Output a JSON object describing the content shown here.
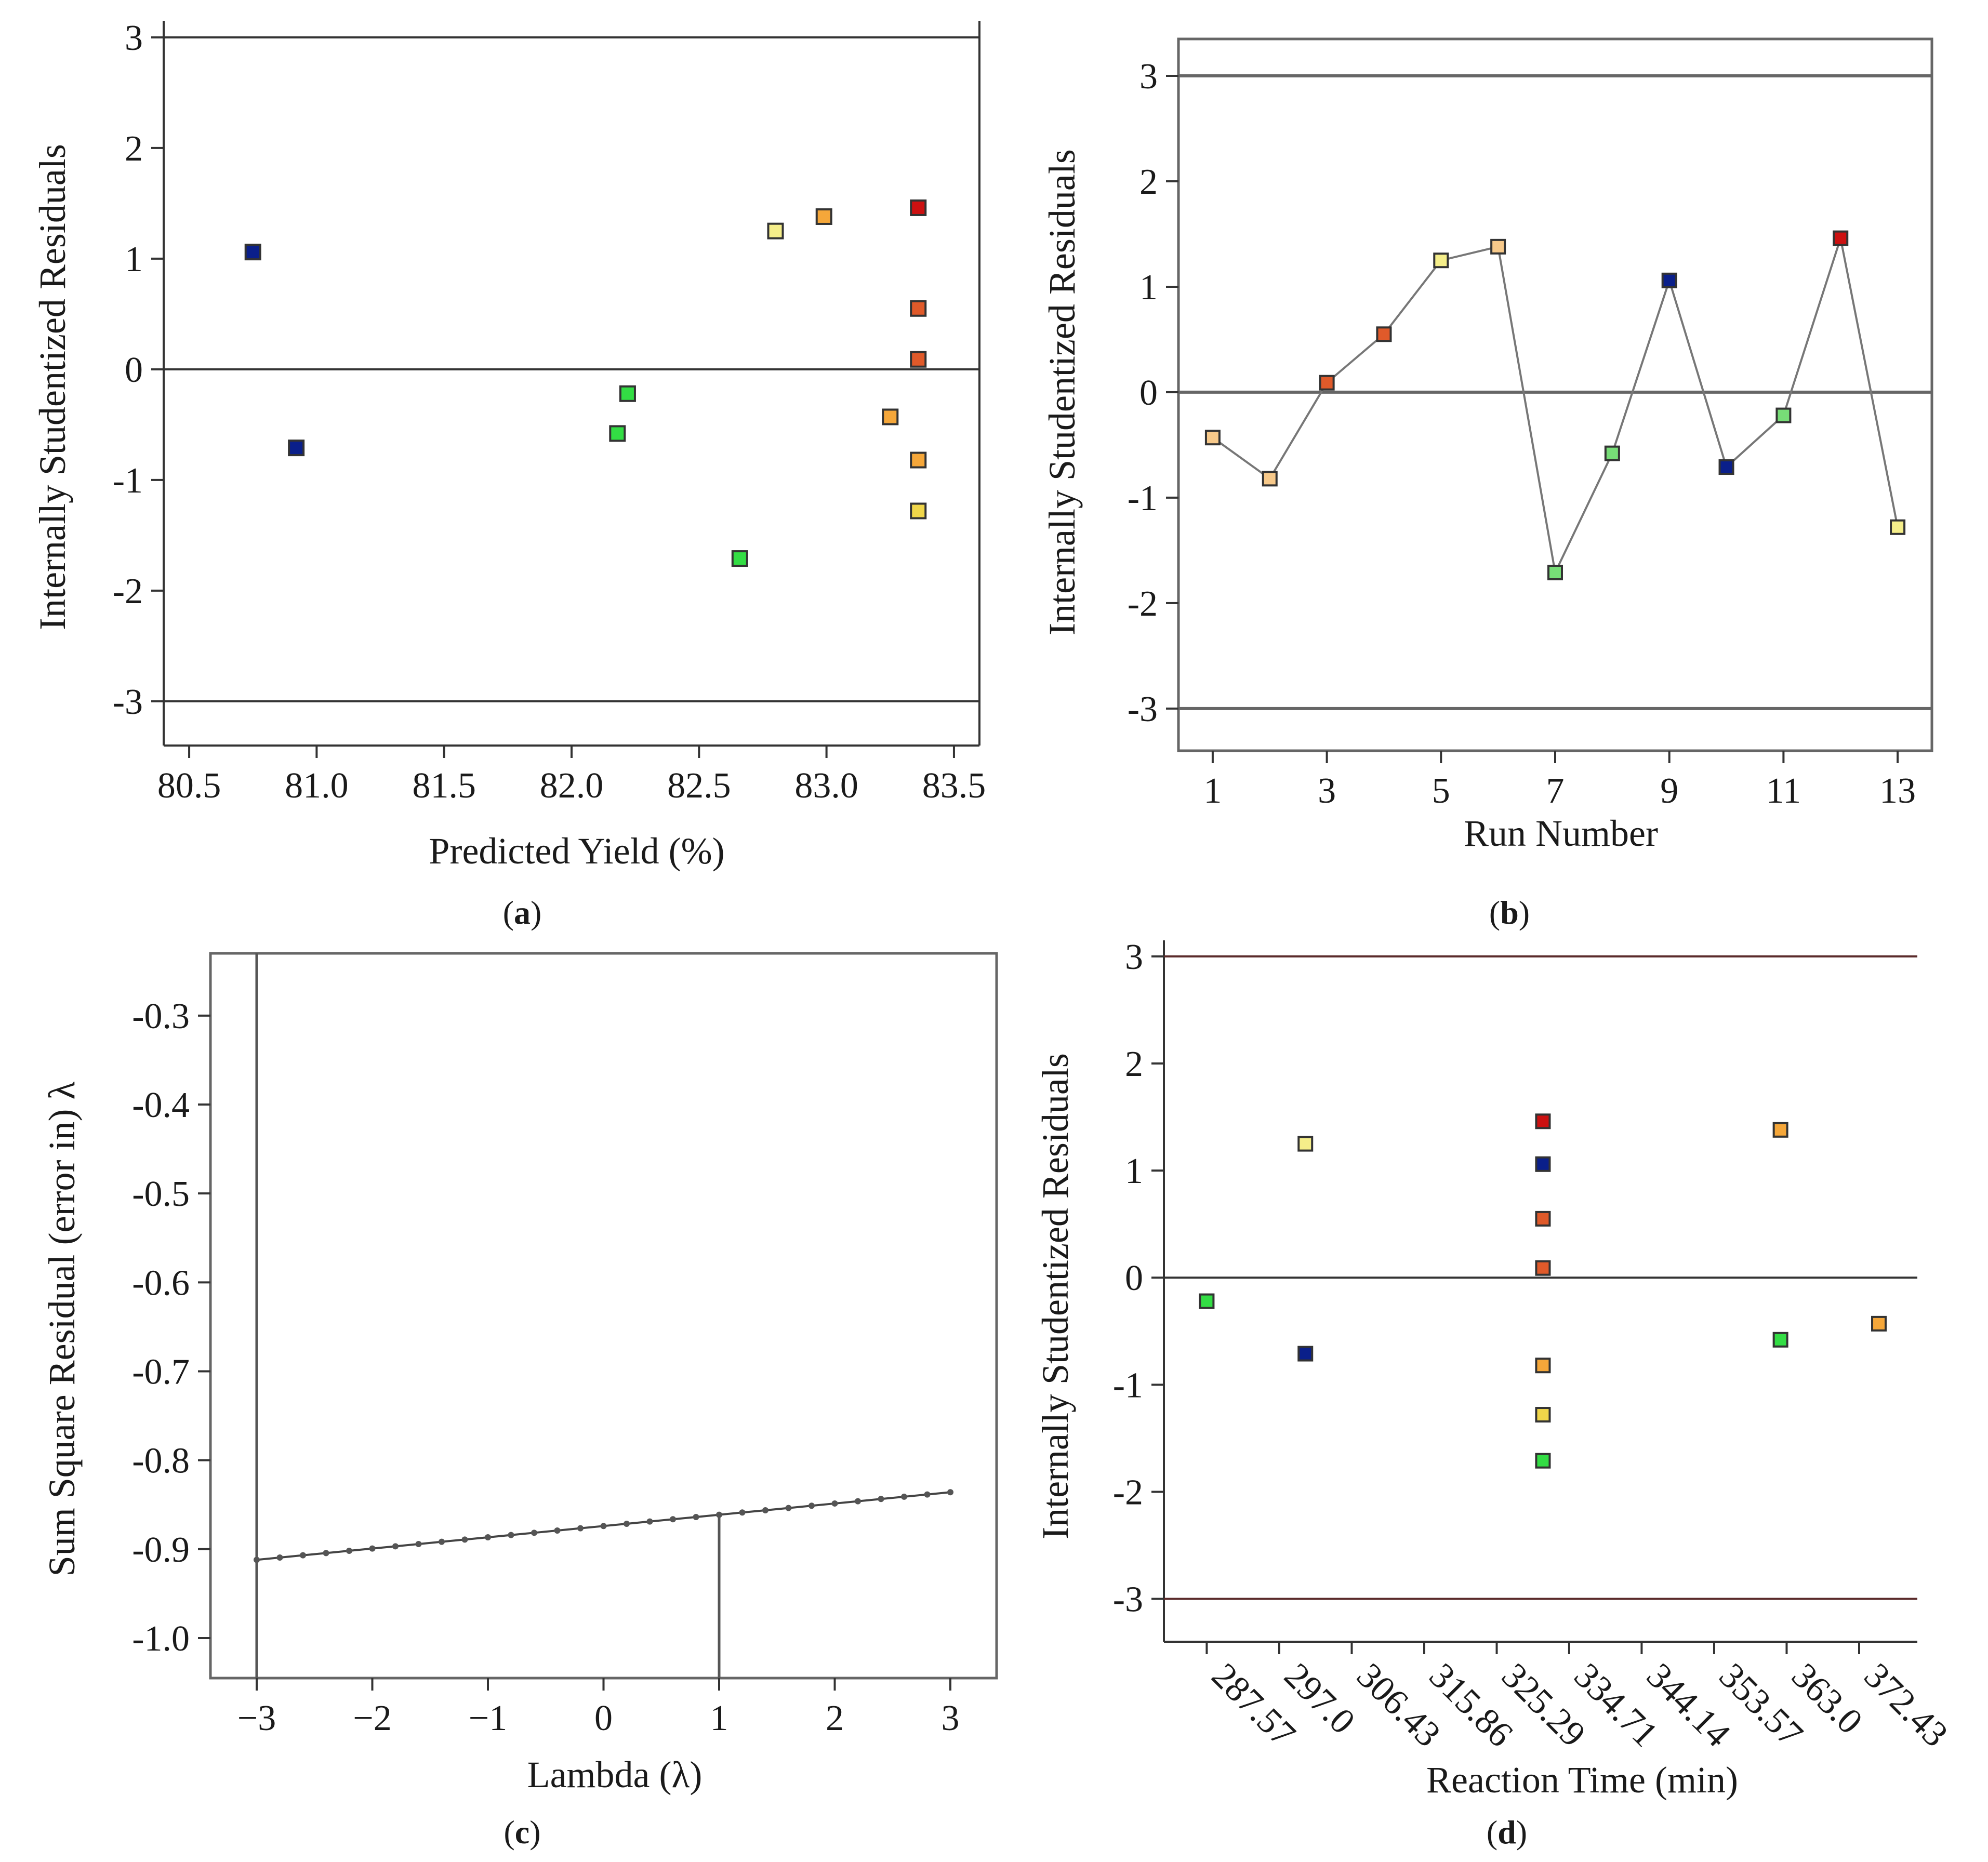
{
  "colors": {
    "red": "#cc1111",
    "orange_red": "#e05a2a",
    "orange": "#f5a73a",
    "light_orange": "#f7c98a",
    "yellow": "#f0d64a",
    "light_yellow": "#f5ee8a",
    "green": "#33dd44",
    "light_green": "#77dd77",
    "navy": "#0a1f8a",
    "line_gray": "#777777",
    "ref_brown": "#5a2a2a"
  },
  "chart_data": [
    {
      "id": "a",
      "caption": "a",
      "type": "scatter",
      "xlabel": "Predicted Yield (%)",
      "ylabel": "Internally Studentized Residuals",
      "xlim": [
        80.4,
        83.6
      ],
      "ylim": [
        -3.4,
        3.15
      ],
      "xticks": [
        "80.5",
        "81.0",
        "81.5",
        "82.0",
        "82.5",
        "83.0",
        "83.5"
      ],
      "yticks": [
        "3",
        "2",
        "1",
        "0",
        "-1",
        "-2",
        "-3"
      ],
      "ref_lines": [
        3,
        0,
        -3
      ],
      "points": [
        {
          "x": 80.75,
          "y": 1.06,
          "color": "navy"
        },
        {
          "x": 80.92,
          "y": -0.71,
          "color": "navy"
        },
        {
          "x": 82.18,
          "y": -0.58,
          "color": "green"
        },
        {
          "x": 82.22,
          "y": -0.22,
          "color": "green"
        },
        {
          "x": 82.66,
          "y": -1.71,
          "color": "green"
        },
        {
          "x": 82.8,
          "y": 1.25,
          "color": "light_yellow"
        },
        {
          "x": 82.99,
          "y": 1.38,
          "color": "orange"
        },
        {
          "x": 83.25,
          "y": -0.43,
          "color": "orange"
        },
        {
          "x": 83.36,
          "y": 1.46,
          "color": "red"
        },
        {
          "x": 83.36,
          "y": 0.55,
          "color": "orange_red"
        },
        {
          "x": 83.36,
          "y": 0.09,
          "color": "orange_red"
        },
        {
          "x": 83.36,
          "y": -0.82,
          "color": "orange"
        },
        {
          "x": 83.36,
          "y": -1.28,
          "color": "yellow"
        }
      ]
    },
    {
      "id": "b",
      "caption": "b",
      "type": "line",
      "xlabel": "Run Number",
      "ylabel": "Internally Studentized Residuals",
      "xlim": [
        0.4,
        13.6
      ],
      "ylim": [
        -3.4,
        3.35
      ],
      "xticks": [
        "1",
        "3",
        "5",
        "7",
        "9",
        "11",
        "13"
      ],
      "yticks": [
        "3",
        "2",
        "1",
        "0",
        "-1",
        "-2",
        "-3"
      ],
      "ref_lines": [
        3,
        0,
        -3
      ],
      "points": [
        {
          "x": 1,
          "y": -0.43,
          "color": "light_orange"
        },
        {
          "x": 2,
          "y": -0.82,
          "color": "light_orange"
        },
        {
          "x": 3,
          "y": 0.09,
          "color": "orange_red"
        },
        {
          "x": 4,
          "y": 0.55,
          "color": "orange_red"
        },
        {
          "x": 5,
          "y": 1.25,
          "color": "light_yellow"
        },
        {
          "x": 6,
          "y": 1.38,
          "color": "light_orange"
        },
        {
          "x": 7,
          "y": -1.71,
          "color": "light_green"
        },
        {
          "x": 8,
          "y": -0.58,
          "color": "light_green"
        },
        {
          "x": 9,
          "y": 1.06,
          "color": "navy"
        },
        {
          "x": 10,
          "y": -0.71,
          "color": "navy"
        },
        {
          "x": 11,
          "y": -0.22,
          "color": "light_green"
        },
        {
          "x": 12,
          "y": 1.46,
          "color": "red"
        },
        {
          "x": 13,
          "y": -1.28,
          "color": "light_yellow"
        }
      ]
    },
    {
      "id": "c",
      "caption": "c",
      "type": "line",
      "xlabel": "Lambda (λ)",
      "ylabel": "Sum Square Residual (error in) λ",
      "xlim": [
        -3.4,
        3.4
      ],
      "ylim": [
        -1.045,
        -0.23
      ],
      "xticks": [
        "−3",
        "−2",
        "−1",
        "0",
        "1",
        "2",
        "3"
      ],
      "yticks": [
        "-0.3",
        "-0.4",
        "-0.5",
        "-0.6",
        "-0.7",
        "-0.8",
        "-0.9",
        "-1.0"
      ],
      "vlines": [
        -3,
        1
      ],
      "series": {
        "x_start": -3,
        "x_end": 3,
        "step": 0.2,
        "y_start": -0.912,
        "y_end": -0.836
      }
    },
    {
      "id": "d",
      "caption": "d",
      "type": "scatter",
      "xlabel": "Reaction Time (min)",
      "ylabel": "Internally Studentized Residuals",
      "xlim": [
        282.0,
        380.0
      ],
      "ylim": [
        -3.4,
        3.15
      ],
      "xticks": [
        "287.57",
        "297.0",
        "306.43",
        "315.86",
        "325.29",
        "334.71",
        "344.14",
        "353.57",
        "363.0",
        "372.43"
      ],
      "yticks": [
        "3",
        "2",
        "1",
        "0",
        "-1",
        "-2",
        "-3"
      ],
      "ref_lines": [
        3,
        0,
        -3
      ],
      "points": [
        {
          "x": 287.57,
          "y": -0.22,
          "color": "green"
        },
        {
          "x": 300.4,
          "y": 1.25,
          "color": "light_yellow"
        },
        {
          "x": 300.4,
          "y": -0.71,
          "color": "navy"
        },
        {
          "x": 331.3,
          "y": 1.46,
          "color": "red"
        },
        {
          "x": 331.3,
          "y": 1.06,
          "color": "navy"
        },
        {
          "x": 331.3,
          "y": 0.55,
          "color": "orange_red"
        },
        {
          "x": 331.3,
          "y": 0.09,
          "color": "orange_red"
        },
        {
          "x": 331.3,
          "y": -0.82,
          "color": "orange"
        },
        {
          "x": 331.3,
          "y": -1.28,
          "color": "yellow"
        },
        {
          "x": 331.3,
          "y": -1.71,
          "color": "green"
        },
        {
          "x": 362.2,
          "y": 1.38,
          "color": "orange"
        },
        {
          "x": 362.2,
          "y": -0.58,
          "color": "green"
        },
        {
          "x": 375.0,
          "y": -0.43,
          "color": "orange"
        }
      ]
    }
  ]
}
